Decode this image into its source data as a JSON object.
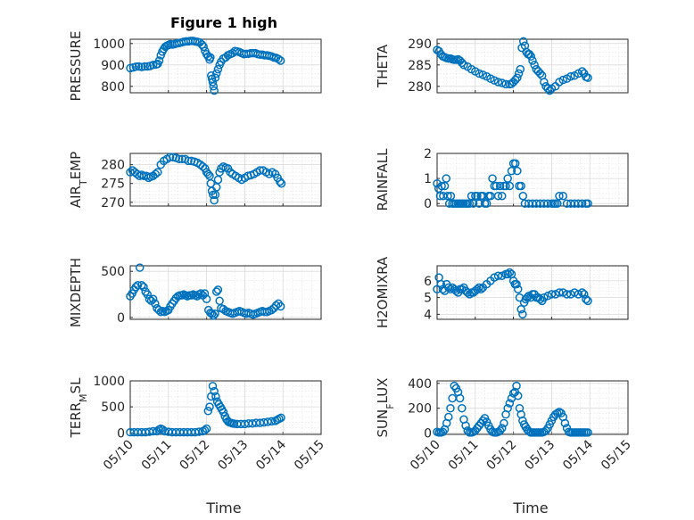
{
  "chart_data": {
    "type": "scatter",
    "title": "Figure 1 high",
    "xlabel": "Time",
    "x_ticks": [
      "05/10",
      "05/11",
      "05/12",
      "05/13",
      "05/14",
      "05/15"
    ],
    "marker": "circle",
    "marker_color": "#0072BD",
    "grid": true,
    "minor_grid": true,
    "subplots": [
      {
        "ylabel": "PRESSURE",
        "ylim": [
          770,
          1020
        ],
        "yticks": [
          800,
          900,
          1000
        ],
        "x": [
          0.0,
          0.08,
          0.15,
          0.22,
          0.3,
          0.38,
          0.45,
          0.52,
          0.6,
          0.68,
          0.72,
          0.76,
          0.8,
          0.84,
          0.88,
          0.92,
          0.96,
          1.0,
          1.05,
          1.1,
          1.16,
          1.22,
          1.28,
          1.34,
          1.4,
          1.46,
          1.52,
          1.58,
          1.64,
          1.7,
          1.76,
          1.82,
          1.88,
          1.92,
          1.96,
          2.0,
          2.04,
          2.08,
          2.1,
          2.12,
          2.14,
          2.16,
          2.18,
          2.2,
          2.23,
          2.26,
          2.3,
          2.34,
          2.38,
          2.44,
          2.5,
          2.56,
          2.62,
          2.68,
          2.74,
          2.8,
          2.86,
          2.92,
          2.98,
          3.04,
          3.1,
          3.16,
          3.22,
          3.28,
          3.34,
          3.4,
          3.46,
          3.52,
          3.58,
          3.64,
          3.7,
          3.76,
          3.82,
          3.88,
          3.94
        ],
        "y": [
          885,
          888,
          892,
          893,
          890,
          893,
          893,
          895,
          900,
          902,
          905,
          920,
          945,
          962,
          975,
          985,
          990,
          993,
          997,
          995,
          997,
          1000,
          1002,
          1005,
          1008,
          1010,
          1010,
          1012,
          1012,
          1010,
          1008,
          1005,
          995,
          985,
          965,
          950,
          940,
          925,
          935,
          850,
          835,
          820,
          800,
          780,
          840,
          860,
          880,
          900,
          915,
          930,
          935,
          945,
          950,
          955,
          965,
          963,
          960,
          955,
          950,
          952,
          952,
          955,
          955,
          955,
          950,
          948,
          948,
          945,
          945,
          943,
          940,
          935,
          933,
          928,
          920
        ]
      },
      {
        "ylabel": "THETA",
        "ylim": [
          278.5,
          291
        ],
        "yticks": [
          280,
          285,
          290
        ],
        "x": [
          0.0,
          0.05,
          0.1,
          0.15,
          0.2,
          0.25,
          0.3,
          0.35,
          0.4,
          0.45,
          0.5,
          0.55,
          0.6,
          0.65,
          0.7,
          0.8,
          0.9,
          1.0,
          1.1,
          1.2,
          1.3,
          1.4,
          1.5,
          1.6,
          1.7,
          1.8,
          1.9,
          1.95,
          2.0,
          2.05,
          2.1,
          2.14,
          2.18,
          2.22,
          2.26,
          2.3,
          2.34,
          2.38,
          2.42,
          2.46,
          2.5,
          2.55,
          2.6,
          2.65,
          2.7,
          2.75,
          2.8,
          2.85,
          2.9,
          2.95,
          3.0,
          3.1,
          3.2,
          3.3,
          3.4,
          3.5,
          3.6,
          3.7,
          3.8,
          3.85,
          3.9,
          3.95
        ],
        "y": [
          288.5,
          288.2,
          287.5,
          287,
          286.8,
          286.6,
          286.5,
          286.5,
          286.3,
          286.2,
          286.2,
          286.3,
          286,
          285.5,
          285,
          284.6,
          284,
          283.5,
          283,
          282.7,
          282.3,
          281.8,
          281.4,
          281,
          280.8,
          280.5,
          280.5,
          280.6,
          281,
          281.5,
          282,
          283,
          284,
          289,
          290.5,
          289.5,
          288,
          287.5,
          287.5,
          287,
          286,
          285,
          284,
          283.5,
          283,
          282.5,
          281,
          280,
          279.5,
          279,
          279.5,
          280,
          281,
          281.5,
          281.8,
          282.3,
          282.5,
          283,
          283.5,
          283,
          282.2,
          282
        ]
      },
      {
        "ylabel": "AIR_TEMP",
        "ylim": [
          269,
          283
        ],
        "yticks": [
          270,
          275,
          280
        ],
        "x": [
          0.0,
          0.06,
          0.12,
          0.18,
          0.24,
          0.3,
          0.36,
          0.42,
          0.48,
          0.54,
          0.6,
          0.66,
          0.72,
          0.8,
          0.88,
          0.96,
          1.04,
          1.12,
          1.2,
          1.28,
          1.36,
          1.44,
          1.52,
          1.6,
          1.68,
          1.76,
          1.84,
          1.9,
          1.96,
          2.0,
          2.04,
          2.08,
          2.11,
          2.14,
          2.17,
          2.2,
          2.23,
          2.26,
          2.3,
          2.34,
          2.38,
          2.44,
          2.5,
          2.56,
          2.62,
          2.68,
          2.76,
          2.84,
          2.92,
          3.0,
          3.08,
          3.16,
          3.24,
          3.32,
          3.4,
          3.48,
          3.56,
          3.64,
          3.72,
          3.8,
          3.86,
          3.92,
          3.96
        ],
        "y": [
          278,
          278.5,
          278,
          277.5,
          277,
          277.3,
          277,
          277,
          276.5,
          276.8,
          277,
          277.5,
          278,
          280,
          281,
          281.5,
          282,
          282,
          281.8,
          281.5,
          281.5,
          281.5,
          281,
          281,
          280.8,
          280.5,
          280,
          279.5,
          279,
          278,
          277.5,
          277,
          275,
          273,
          272,
          270.5,
          272,
          274,
          276,
          278,
          279,
          279.5,
          279.2,
          279,
          278,
          277.5,
          277,
          276.5,
          276,
          276.5,
          277,
          277.2,
          277.5,
          278,
          278.5,
          278.5,
          278,
          277.5,
          278,
          277.5,
          276.5,
          275.5,
          275
        ]
      },
      {
        "ylabel": "RAINFALL",
        "ylim": [
          -0.1,
          2
        ],
        "yticks": [
          0,
          1,
          2
        ],
        "x": [
          0.0,
          0.04,
          0.08,
          0.12,
          0.16,
          0.2,
          0.24,
          0.28,
          0.32,
          0.36,
          0.4,
          0.45,
          0.5,
          0.55,
          0.6,
          0.65,
          0.7,
          0.75,
          0.8,
          0.85,
          0.9,
          0.95,
          1.0,
          1.05,
          1.1,
          1.15,
          1.2,
          1.25,
          1.3,
          1.35,
          1.4,
          1.45,
          1.5,
          1.55,
          1.6,
          1.65,
          1.7,
          1.75,
          1.8,
          1.85,
          1.9,
          1.95,
          2.0,
          2.05,
          2.1,
          2.15,
          2.2,
          2.25,
          2.3,
          2.4,
          2.5,
          2.6,
          2.7,
          2.8,
          2.9,
          3.0,
          3.05,
          3.1,
          3.15,
          3.2,
          3.3,
          3.4,
          3.5,
          3.6,
          3.7,
          3.8,
          3.9,
          3.95
        ],
        "y": [
          0.8,
          0.6,
          0.3,
          0.7,
          0.3,
          0.7,
          1.0,
          0.3,
          0,
          0.3,
          0,
          0,
          0,
          0,
          0,
          0,
          0,
          0,
          0,
          0,
          0.3,
          0,
          0.3,
          0.3,
          0,
          0.3,
          0.3,
          0,
          0,
          0.3,
          0.3,
          1.0,
          0.7,
          0.7,
          0.3,
          0.7,
          0.3,
          0.7,
          0.7,
          1.0,
          0.7,
          1.3,
          1.6,
          1.6,
          1.3,
          0.7,
          0.7,
          0.3,
          0,
          0,
          0,
          0,
          0,
          0,
          0,
          0,
          0,
          0,
          0,
          0.3,
          0.3,
          0,
          0,
          0,
          0,
          0,
          0,
          0
        ]
      },
      {
        "ylabel": "MIXDEPTH",
        "ylim": [
          -20,
          560
        ],
        "yticks": [
          0,
          500
        ],
        "x": [
          0.0,
          0.05,
          0.1,
          0.15,
          0.2,
          0.25,
          0.3,
          0.35,
          0.4,
          0.45,
          0.5,
          0.55,
          0.6,
          0.65,
          0.7,
          0.75,
          0.8,
          0.85,
          0.9,
          0.95,
          1.0,
          1.05,
          1.1,
          1.15,
          1.2,
          1.25,
          1.3,
          1.35,
          1.4,
          1.45,
          1.5,
          1.55,
          1.6,
          1.65,
          1.7,
          1.75,
          1.8,
          1.85,
          1.9,
          1.95,
          2.0,
          2.05,
          2.1,
          2.14,
          2.18,
          2.22,
          2.26,
          2.3,
          2.34,
          2.38,
          2.44,
          2.5,
          2.56,
          2.62,
          2.68,
          2.74,
          2.8,
          2.86,
          2.92,
          2.98,
          3.04,
          3.1,
          3.16,
          3.22,
          3.28,
          3.34,
          3.4,
          3.46,
          3.52,
          3.58,
          3.64,
          3.7,
          3.76,
          3.82,
          3.88,
          3.94
        ],
        "y": [
          230,
          260,
          300,
          330,
          350,
          540,
          350,
          330,
          280,
          250,
          200,
          180,
          200,
          150,
          100,
          80,
          60,
          70,
          60,
          70,
          80,
          120,
          150,
          180,
          210,
          230,
          240,
          240,
          250,
          240,
          230,
          240,
          240,
          250,
          240,
          230,
          250,
          260,
          240,
          260,
          200,
          80,
          50,
          40,
          20,
          40,
          280,
          300,
          180,
          100,
          90,
          70,
          60,
          50,
          40,
          50,
          60,
          70,
          60,
          50,
          40,
          50,
          40,
          30,
          40,
          50,
          60,
          70,
          60,
          60,
          70,
          80,
          100,
          130,
          150,
          120
        ]
      },
      {
        "ylabel": "H2OMIXRA",
        "ylim": [
          3.7,
          6.9
        ],
        "yticks": [
          4,
          5,
          6
        ],
        "x": [
          0.0,
          0.05,
          0.1,
          0.15,
          0.2,
          0.25,
          0.3,
          0.35,
          0.4,
          0.45,
          0.5,
          0.55,
          0.6,
          0.65,
          0.7,
          0.75,
          0.8,
          0.85,
          0.9,
          0.95,
          1.0,
          1.05,
          1.1,
          1.15,
          1.2,
          1.3,
          1.4,
          1.5,
          1.6,
          1.7,
          1.8,
          1.85,
          1.9,
          1.95,
          2.0,
          2.04,
          2.08,
          2.12,
          2.16,
          2.2,
          2.24,
          2.28,
          2.32,
          2.36,
          2.4,
          2.45,
          2.5,
          2.55,
          2.6,
          2.65,
          2.7,
          2.75,
          2.8,
          2.9,
          3.0,
          3.1,
          3.2,
          3.3,
          3.4,
          3.5,
          3.6,
          3.7,
          3.8,
          3.85,
          3.9,
          3.95
        ],
        "y": [
          5.5,
          6.2,
          5.8,
          5.5,
          5.4,
          5.8,
          5.6,
          5.5,
          5.6,
          5.5,
          5.4,
          5.3,
          5.5,
          5.5,
          5.6,
          5.4,
          5.3,
          5.2,
          5.3,
          5.3,
          5.4,
          5.5,
          5.6,
          5.5,
          5.6,
          5.8,
          6.0,
          6.2,
          6.3,
          6.3,
          6.4,
          6.4,
          6.5,
          6.4,
          6.0,
          5.8,
          5.8,
          5.5,
          5.0,
          4.3,
          4.0,
          4.7,
          4.9,
          5.0,
          5.1,
          5.0,
          5.2,
          5.2,
          5.0,
          5.0,
          4.9,
          4.8,
          5.0,
          5.1,
          5.2,
          5.2,
          5.3,
          5.3,
          5.2,
          5.2,
          5.3,
          5.2,
          5.3,
          5.2,
          4.9,
          4.8
        ]
      },
      {
        "ylabel": "TERR_MSL",
        "ylim": [
          -30,
          1000
        ],
        "yticks": [
          0,
          500,
          1000
        ],
        "x": [
          0.0,
          0.1,
          0.2,
          0.3,
          0.4,
          0.5,
          0.6,
          0.7,
          0.75,
          0.8,
          0.85,
          0.9,
          1.0,
          1.1,
          1.2,
          1.3,
          1.4,
          1.5,
          1.6,
          1.7,
          1.8,
          1.9,
          1.95,
          2.0,
          2.04,
          2.08,
          2.12,
          2.16,
          2.2,
          2.24,
          2.28,
          2.32,
          2.36,
          2.4,
          2.44,
          2.48,
          2.52,
          2.56,
          2.6,
          2.64,
          2.68,
          2.72,
          2.8,
          2.9,
          3.0,
          3.1,
          3.2,
          3.3,
          3.4,
          3.5,
          3.6,
          3.7,
          3.8,
          3.85,
          3.9,
          3.95
        ],
        "y": [
          10,
          10,
          10,
          10,
          10,
          20,
          30,
          30,
          60,
          80,
          60,
          30,
          20,
          10,
          10,
          10,
          10,
          10,
          10,
          10,
          20,
          30,
          50,
          80,
          420,
          500,
          700,
          900,
          800,
          700,
          600,
          550,
          500,
          450,
          400,
          320,
          260,
          220,
          200,
          190,
          180,
          175,
          170,
          170,
          170,
          180,
          180,
          190,
          190,
          200,
          210,
          220,
          230,
          250,
          270,
          290
        ]
      },
      {
        "ylabel": "SUN_FLUX",
        "ylim": [
          -10,
          420
        ],
        "yticks": [
          0,
          200,
          400
        ],
        "x": [
          0.0,
          0.05,
          0.1,
          0.15,
          0.2,
          0.25,
          0.3,
          0.35,
          0.4,
          0.45,
          0.5,
          0.55,
          0.6,
          0.65,
          0.7,
          0.75,
          0.8,
          0.85,
          0.9,
          0.95,
          1.0,
          1.05,
          1.1,
          1.15,
          1.2,
          1.25,
          1.3,
          1.35,
          1.4,
          1.45,
          1.5,
          1.55,
          1.6,
          1.65,
          1.7,
          1.75,
          1.8,
          1.85,
          1.9,
          1.95,
          2.0,
          2.04,
          2.08,
          2.12,
          2.16,
          2.2,
          2.24,
          2.28,
          2.32,
          2.36,
          2.4,
          2.45,
          2.5,
          2.55,
          2.6,
          2.65,
          2.7,
          2.75,
          2.8,
          2.85,
          2.9,
          2.95,
          3.0,
          3.05,
          3.1,
          3.15,
          3.2,
          3.25,
          3.3,
          3.35,
          3.4,
          3.45,
          3.5,
          3.55,
          3.6,
          3.65,
          3.7,
          3.75,
          3.8,
          3.85,
          3.9,
          3.95
        ],
        "y": [
          10,
          5,
          5,
          10,
          30,
          80,
          130,
          200,
          280,
          380,
          360,
          330,
          280,
          200,
          110,
          60,
          20,
          5,
          5,
          10,
          20,
          40,
          60,
          80,
          100,
          120,
          90,
          60,
          30,
          10,
          5,
          5,
          10,
          20,
          40,
          80,
          150,
          200,
          240,
          280,
          320,
          330,
          380,
          300,
          200,
          150,
          100,
          70,
          50,
          30,
          15,
          5,
          5,
          5,
          5,
          5,
          5,
          5,
          10,
          20,
          40,
          70,
          100,
          130,
          150,
          160,
          170,
          160,
          130,
          80,
          40,
          10,
          5,
          5,
          5,
          5,
          5,
          5,
          5,
          5,
          5,
          5
        ]
      }
    ]
  }
}
